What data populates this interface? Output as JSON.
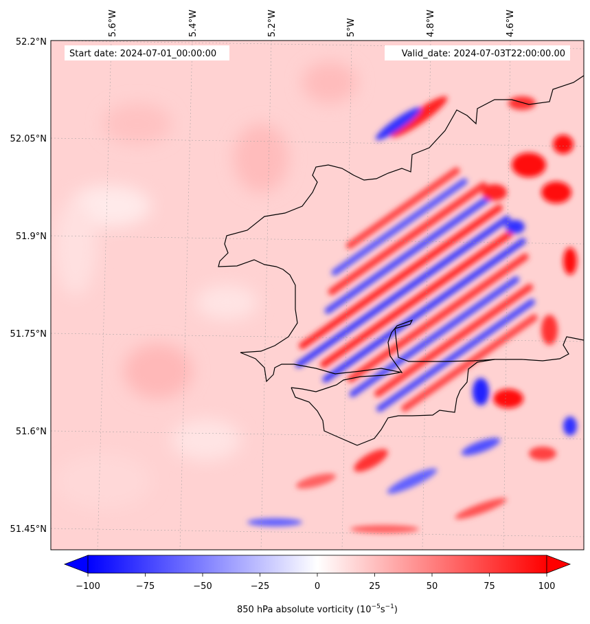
{
  "map": {
    "start_date": "Start date: 2024-07-01_00:00:00",
    "valid_date": "Valid_date: 2024-07-03T22:00:00.00",
    "lon_ticks": [
      "5.6°W",
      "5.4°W",
      "5.2°W",
      "5°W",
      "4.8°W",
      "4.6°W"
    ],
    "lat_ticks": [
      "52.2°N",
      "52.05°N",
      "51.9°N",
      "51.75°N",
      "51.6°N",
      "51.45°N"
    ]
  },
  "colorbar": {
    "label_main": "850 hPa absolute vorticity (10",
    "label_exp1": "−5",
    "label_mid": "s",
    "label_exp2": "−1",
    "label_end": ")",
    "ticks": [
      "−100",
      "−75",
      "−50",
      "−25",
      "0",
      "25",
      "50",
      "75",
      "100"
    ],
    "colors": {
      "min": "#0000ff",
      "mid": "#ffffff",
      "max": "#ff0000"
    }
  }
}
